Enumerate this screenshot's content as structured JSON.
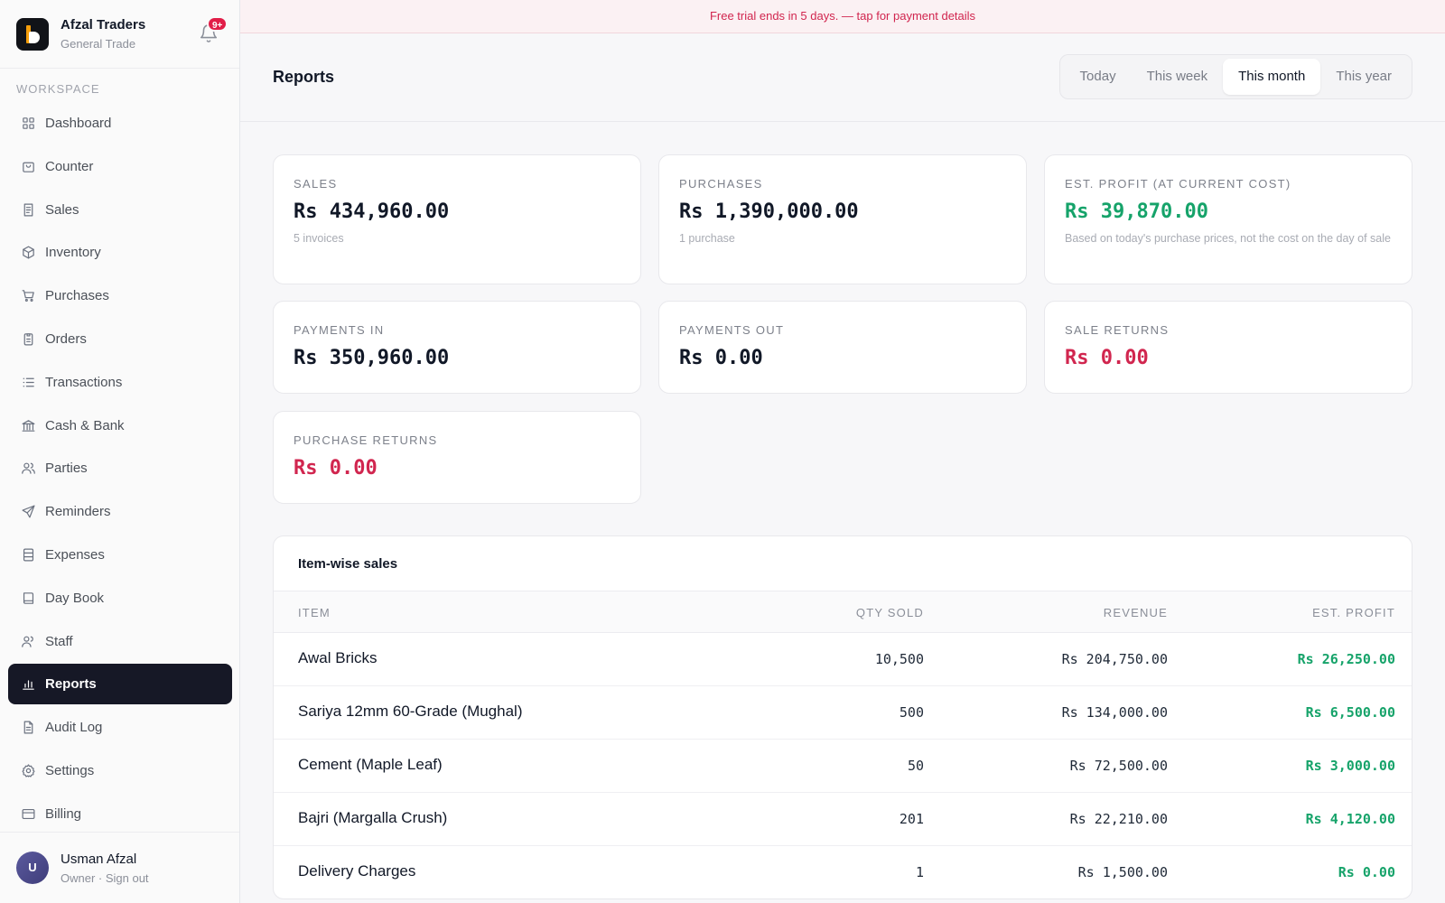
{
  "brand": {
    "name": "Afzal Traders",
    "subtitle": "General Trade",
    "notification_badge": "9+"
  },
  "sidebar": {
    "section_label": "WORKSPACE",
    "items": [
      {
        "label": "Dashboard",
        "icon": "grid-icon"
      },
      {
        "label": "Counter",
        "icon": "bag-icon"
      },
      {
        "label": "Sales",
        "icon": "receipt-icon"
      },
      {
        "label": "Inventory",
        "icon": "box-icon"
      },
      {
        "label": "Purchases",
        "icon": "cart-icon"
      },
      {
        "label": "Orders",
        "icon": "clipboard-icon"
      },
      {
        "label": "Transactions",
        "icon": "list-icon"
      },
      {
        "label": "Cash & Bank",
        "icon": "bank-icon"
      },
      {
        "label": "Parties",
        "icon": "users-icon"
      },
      {
        "label": "Reminders",
        "icon": "send-icon"
      },
      {
        "label": "Expenses",
        "icon": "stack-icon"
      },
      {
        "label": "Day Book",
        "icon": "book-icon"
      },
      {
        "label": "Staff",
        "icon": "staff-icon"
      },
      {
        "label": "Reports",
        "icon": "bar-chart-icon",
        "active": true
      },
      {
        "label": "Audit Log",
        "icon": "file-text-icon"
      },
      {
        "label": "Settings",
        "icon": "gear-icon"
      },
      {
        "label": "Billing",
        "icon": "credit-card-icon"
      }
    ]
  },
  "user": {
    "initial": "U",
    "name": "Usman Afzal",
    "subtitle": "Owner · Sign out"
  },
  "trial_banner": "Free trial ends in 5 days. — tap for payment details",
  "header": {
    "title": "Reports",
    "ranges": [
      "Today",
      "This week",
      "This month",
      "This year"
    ],
    "active_range": "This month"
  },
  "stats": {
    "sales": {
      "label": "SALES",
      "value": "Rs 434,960.00",
      "sub": "5 invoices"
    },
    "purchases": {
      "label": "PURCHASES",
      "value": "Rs 1,390,000.00",
      "sub": "1 purchase"
    },
    "profit": {
      "label": "EST. PROFIT (AT CURRENT COST)",
      "value": "Rs 39,870.00",
      "sub": "Based on today's purchase prices, not the cost on the day of sale"
    },
    "payments_in": {
      "label": "PAYMENTS IN",
      "value": "Rs 350,960.00"
    },
    "payments_out": {
      "label": "PAYMENTS OUT",
      "value": "Rs 0.00"
    },
    "sale_returns": {
      "label": "SALE RETURNS",
      "value": "Rs 0.00"
    },
    "purchase_returns": {
      "label": "PURCHASE RETURNS",
      "value": "Rs 0.00"
    }
  },
  "colors": {
    "accent_dark": "#161826",
    "positive": "#16a36a",
    "negative": "#d1264f"
  },
  "item_sales": {
    "title": "Item-wise sales",
    "columns": [
      "ITEM",
      "QTY SOLD",
      "REVENUE",
      "EST. PROFIT"
    ],
    "rows": [
      {
        "item": "Awal Bricks",
        "qty": "10,500",
        "revenue": "Rs 204,750.00",
        "profit": "Rs 26,250.00"
      },
      {
        "item": "Sariya 12mm 60-Grade (Mughal)",
        "qty": "500",
        "revenue": "Rs 134,000.00",
        "profit": "Rs 6,500.00"
      },
      {
        "item": "Cement (Maple Leaf)",
        "qty": "50",
        "revenue": "Rs 72,500.00",
        "profit": "Rs 3,000.00"
      },
      {
        "item": "Bajri (Margalla Crush)",
        "qty": "201",
        "revenue": "Rs 22,210.00",
        "profit": "Rs 4,120.00"
      },
      {
        "item": "Delivery Charges",
        "qty": "1",
        "revenue": "Rs 1,500.00",
        "profit": "Rs 0.00"
      }
    ]
  }
}
